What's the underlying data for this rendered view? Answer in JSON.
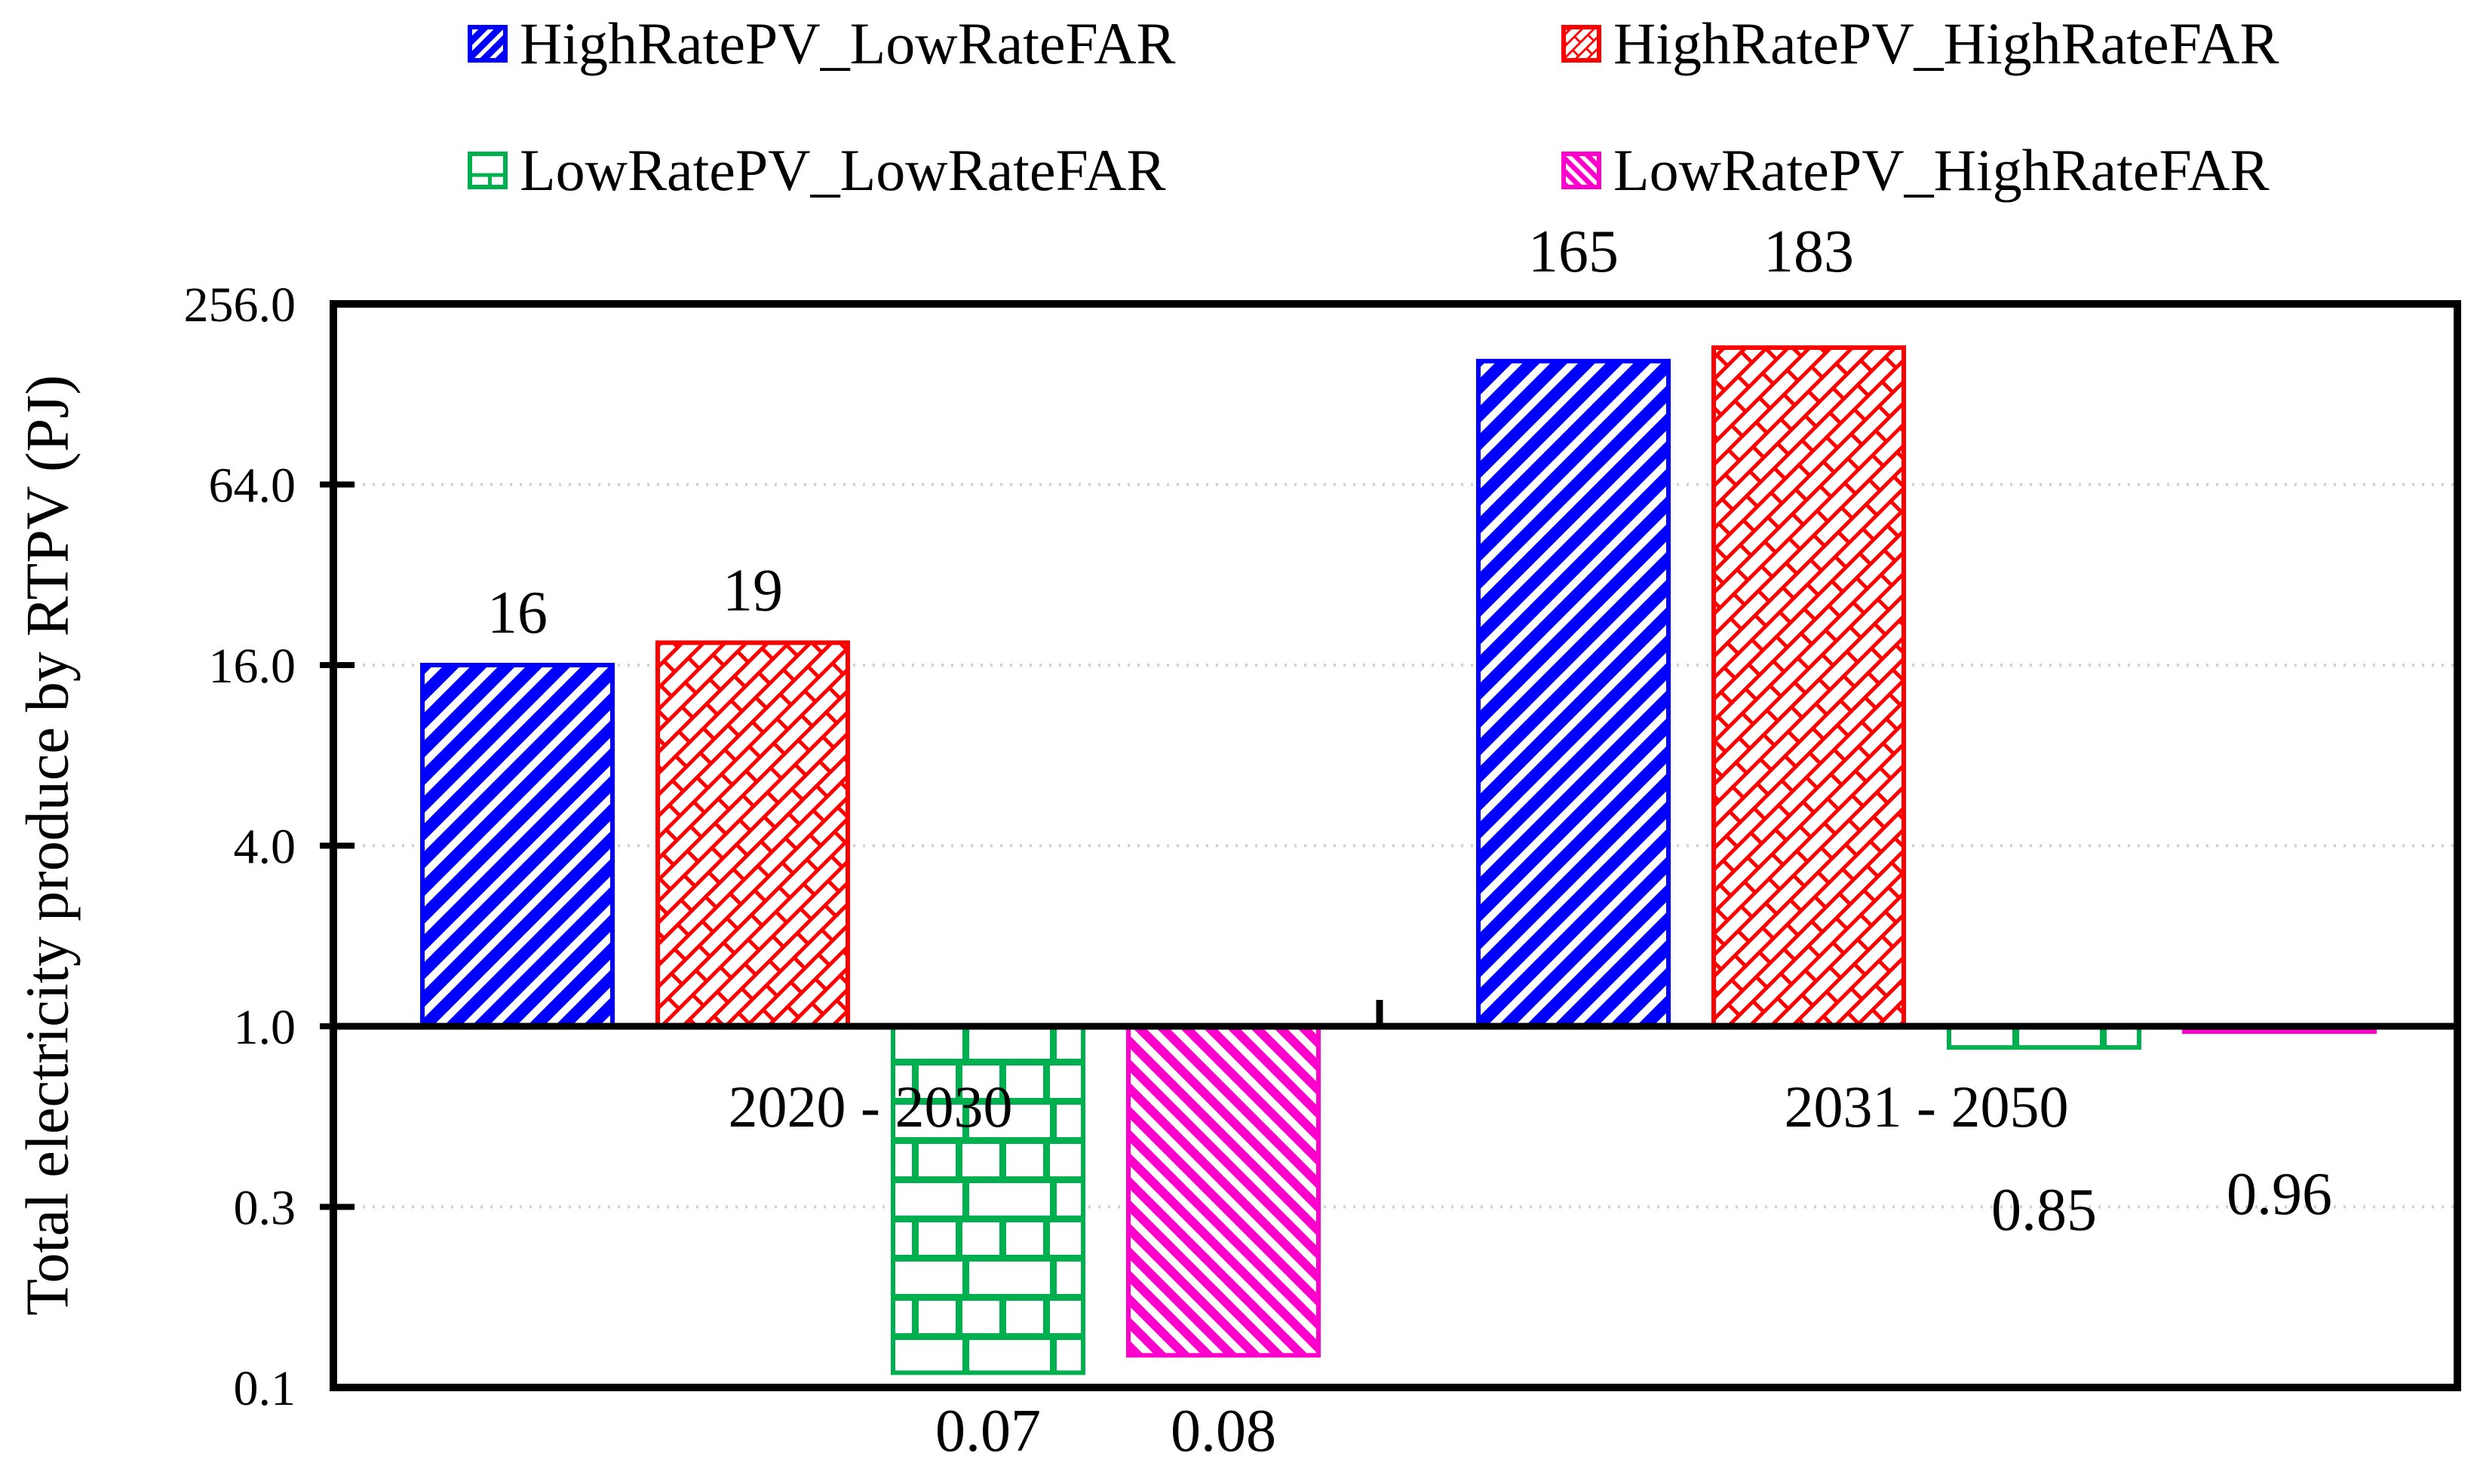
{
  "chart_data": {
    "type": "bar",
    "title": "",
    "xlabel": "",
    "ylabel": "Total electricity produce by RTPV (PJ)",
    "categories": [
      "2020 - 2030",
      "2031 - 2050"
    ],
    "series": [
      {
        "name": "HighRatePV_LowRateFAR",
        "color": "#0000FF",
        "pattern": "diagonal-up",
        "values": [
          16,
          165
        ],
        "labels": [
          "16",
          "165"
        ]
      },
      {
        "name": "HighRatePV_HighRateFAR",
        "color": "#FF0000",
        "pattern": "diagonal-brick",
        "values": [
          19,
          183
        ],
        "labels": [
          "19",
          "183"
        ]
      },
      {
        "name": "LowRatePV_LowRateFAR",
        "color": "#00B04F",
        "pattern": "brick",
        "values": [
          0.07,
          0.85
        ],
        "labels": [
          "0.07",
          "0.85"
        ]
      },
      {
        "name": "LowRatePV_HighRateFAR",
        "color": "#FF00CC",
        "pattern": "diagonal-down",
        "values": [
          0.08,
          0.96
        ],
        "labels": [
          "0.08",
          "0.96"
        ]
      }
    ],
    "y_axis": {
      "scale": "log",
      "log_base": 4,
      "min": 0.0625,
      "max": 256,
      "baseline": 1,
      "ticks": [
        256,
        64,
        16,
        4,
        1,
        0.25,
        0.0625
      ],
      "tick_labels": [
        "256.0",
        "64.0",
        "16.0",
        "4.0",
        "1.0",
        "0.3",
        "0.1"
      ]
    },
    "grid": "horizontal-dotted",
    "grid_color": "#d0d0d0",
    "legend_position": "top"
  }
}
